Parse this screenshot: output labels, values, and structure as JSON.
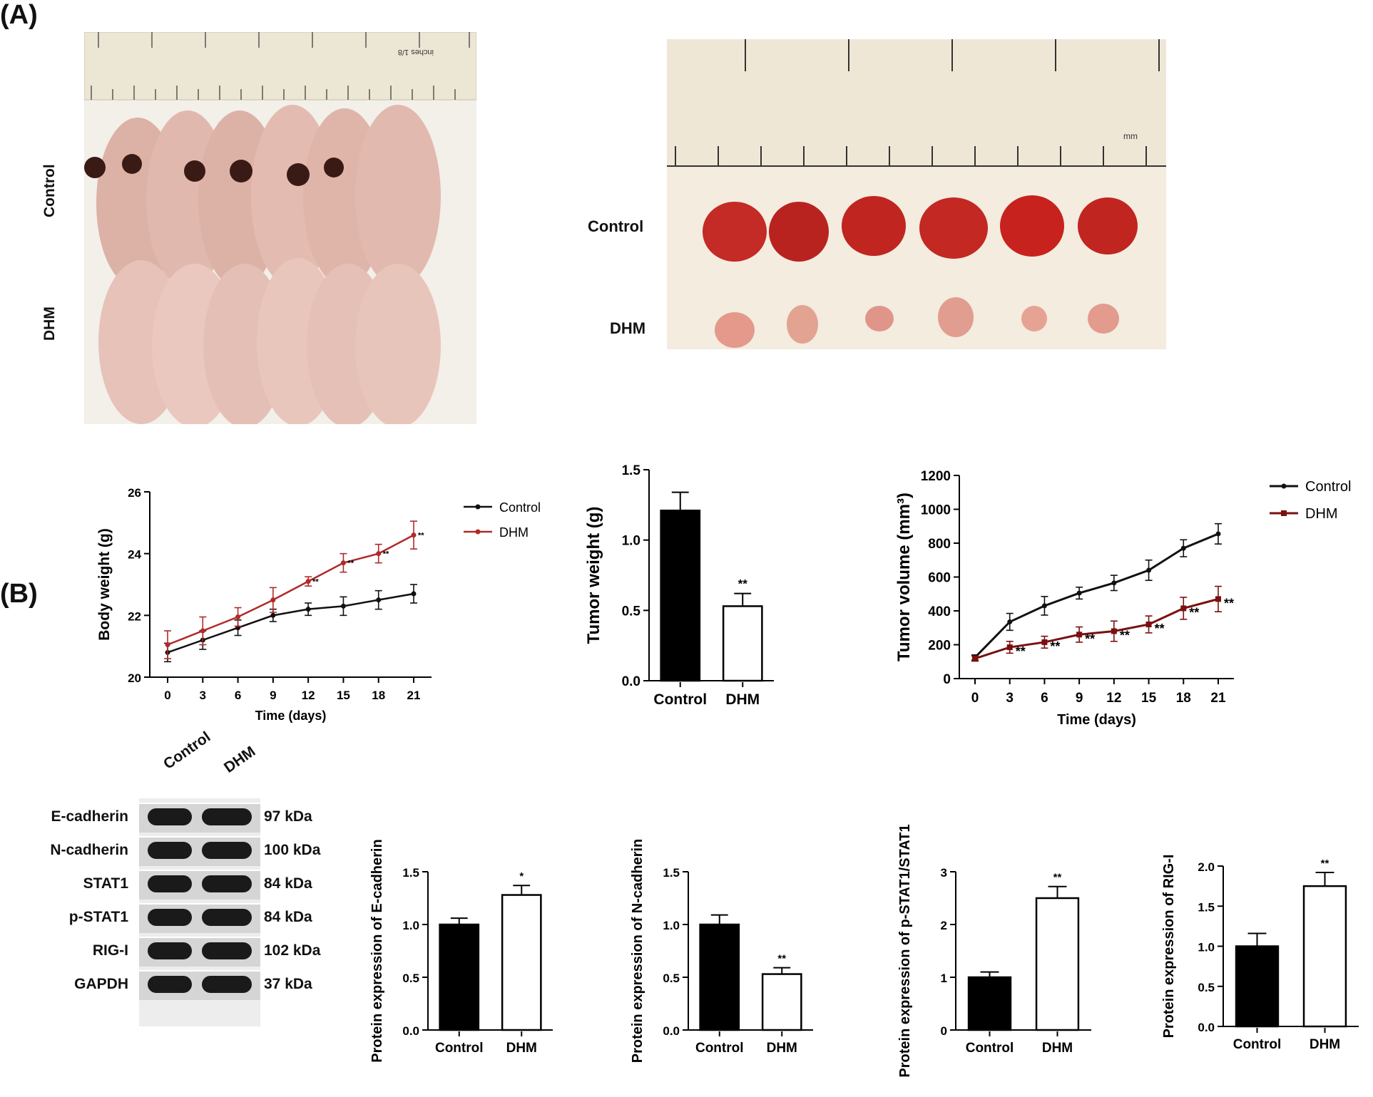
{
  "panels": {
    "A": "(A)",
    "B": "(B)"
  },
  "photos": {
    "mice": {
      "group1": "Control",
      "group2": "DHM"
    },
    "tumors": {
      "group1": "Control",
      "group2": "DHM"
    },
    "ruler_inches_label": "inches 1/8",
    "ruler_mm_label": "mm"
  },
  "colors": {
    "control": "#111111",
    "dhm": "#b02a2a",
    "dhm_dark": "#7a1010"
  },
  "chart_data": [
    {
      "id": "body_weight",
      "type": "line",
      "xlabel": "Time (days)",
      "ylabel": "Body weight (g)",
      "x": [
        0,
        3,
        6,
        9,
        12,
        15,
        18,
        21
      ],
      "ylim": [
        20,
        26
      ],
      "yticks": [
        20,
        22,
        24,
        26
      ],
      "series": [
        {
          "name": "Control",
          "values": [
            20.8,
            21.2,
            21.6,
            22.0,
            22.2,
            22.3,
            22.5,
            22.7
          ],
          "errors": [
            0.3,
            0.3,
            0.25,
            0.2,
            0.2,
            0.3,
            0.3,
            0.3
          ]
        },
        {
          "name": "DHM",
          "values": [
            21.05,
            21.5,
            21.95,
            22.5,
            23.1,
            23.7,
            24.0,
            24.6
          ],
          "errors": [
            0.45,
            0.45,
            0.3,
            0.4,
            0.15,
            0.3,
            0.3,
            0.45
          ]
        }
      ],
      "annotations": [
        {
          "x": 12,
          "text": "**"
        },
        {
          "x": 15,
          "text": "**"
        },
        {
          "x": 18,
          "text": "**"
        },
        {
          "x": 21,
          "text": "**"
        }
      ],
      "legend": "top-right"
    },
    {
      "id": "tumor_weight",
      "type": "bar",
      "categories": [
        "Control",
        "DHM"
      ],
      "values": [
        1.21,
        0.53
      ],
      "errors": [
        0.13,
        0.09
      ],
      "ylabel": "Tumor weight (g)",
      "ylim": [
        0,
        1.5
      ],
      "yticks": [
        0.0,
        0.5,
        1.0,
        1.5
      ],
      "yticklabels": [
        "0.0",
        "0.5",
        "1.0",
        "1.5"
      ],
      "annotations": [
        "",
        "**"
      ]
    },
    {
      "id": "tumor_volume",
      "type": "line",
      "xlabel": "Time (days)",
      "ylabel": "Tumor volume (mm³)",
      "x": [
        0,
        3,
        6,
        9,
        12,
        15,
        18,
        21
      ],
      "ylim": [
        0,
        1200
      ],
      "yticks": [
        0,
        200,
        400,
        600,
        800,
        1000,
        1200
      ],
      "series": [
        {
          "name": "Control",
          "values": [
            125,
            335,
            430,
            505,
            565,
            640,
            770,
            855
          ],
          "errors": [
            15,
            50,
            55,
            35,
            45,
            60,
            50,
            60
          ]
        },
        {
          "name": "DHM",
          "values": [
            118,
            185,
            215,
            260,
            280,
            320,
            415,
            470
          ],
          "errors": [
            15,
            35,
            35,
            45,
            60,
            50,
            65,
            75
          ]
        }
      ],
      "annotations": [
        {
          "x": 3,
          "text": "**"
        },
        {
          "x": 6,
          "text": "**"
        },
        {
          "x": 9,
          "text": "**"
        },
        {
          "x": 12,
          "text": "**"
        },
        {
          "x": 15,
          "text": "**"
        },
        {
          "x": 18,
          "text": "**"
        },
        {
          "x": 21,
          "text": "**"
        }
      ],
      "legend": "top-right"
    },
    {
      "id": "ecadherin",
      "type": "bar",
      "categories": [
        "Control",
        "DHM"
      ],
      "values": [
        1.0,
        1.28
      ],
      "errors": [
        0.06,
        0.09
      ],
      "ylabel": "Protein expression of E-cadherin",
      "ylim": [
        0,
        1.5
      ],
      "yticks": [
        0.0,
        0.5,
        1.0,
        1.5
      ],
      "yticklabels": [
        "0.0",
        "0.5",
        "1.0",
        "1.5"
      ],
      "annotations": [
        "",
        "*"
      ]
    },
    {
      "id": "ncadherin",
      "type": "bar",
      "categories": [
        "Control",
        "DHM"
      ],
      "values": [
        1.0,
        0.53
      ],
      "errors": [
        0.09,
        0.06
      ],
      "ylabel": "Protein expression of N-cadherin",
      "ylim": [
        0,
        1.5
      ],
      "yticks": [
        0.0,
        0.5,
        1.0,
        1.5
      ],
      "yticklabels": [
        "0.0",
        "0.5",
        "1.0",
        "1.5"
      ],
      "annotations": [
        "",
        "**"
      ]
    },
    {
      "id": "pstat1",
      "type": "bar",
      "categories": [
        "Control",
        "DHM"
      ],
      "values": [
        1.0,
        2.5
      ],
      "errors": [
        0.1,
        0.22
      ],
      "ylabel": "Protein expression of p-STAT1/STAT1",
      "ylim": [
        0,
        3
      ],
      "yticks": [
        0,
        1,
        2,
        3
      ],
      "yticklabels": [
        "0",
        "1",
        "2",
        "3"
      ],
      "annotations": [
        "",
        "**"
      ]
    },
    {
      "id": "rigi",
      "type": "bar",
      "categories": [
        "Control",
        "DHM"
      ],
      "values": [
        1.0,
        1.75
      ],
      "errors": [
        0.16,
        0.17
      ],
      "ylabel": "Protein expression of RIG-I",
      "ylim": [
        0,
        2.0
      ],
      "yticks": [
        0.0,
        0.5,
        1.0,
        1.5,
        2.0
      ],
      "yticklabels": [
        "0.0",
        "0.5",
        "1.0",
        "1.5",
        "2.0"
      ],
      "annotations": [
        "",
        "**"
      ]
    }
  ],
  "western_blot": {
    "columns": [
      "Control",
      "DHM"
    ],
    "rows": [
      {
        "protein": "E-cadherin",
        "kda": "97 kDa"
      },
      {
        "protein": "N-cadherin",
        "kda": "100 kDa"
      },
      {
        "protein": "STAT1",
        "kda": "84 kDa"
      },
      {
        "protein": "p-STAT1",
        "kda": "84 kDa"
      },
      {
        "protein": "RIG-I",
        "kda": "102 kDa"
      },
      {
        "protein": "GAPDH",
        "kda": "37 kDa"
      }
    ]
  }
}
